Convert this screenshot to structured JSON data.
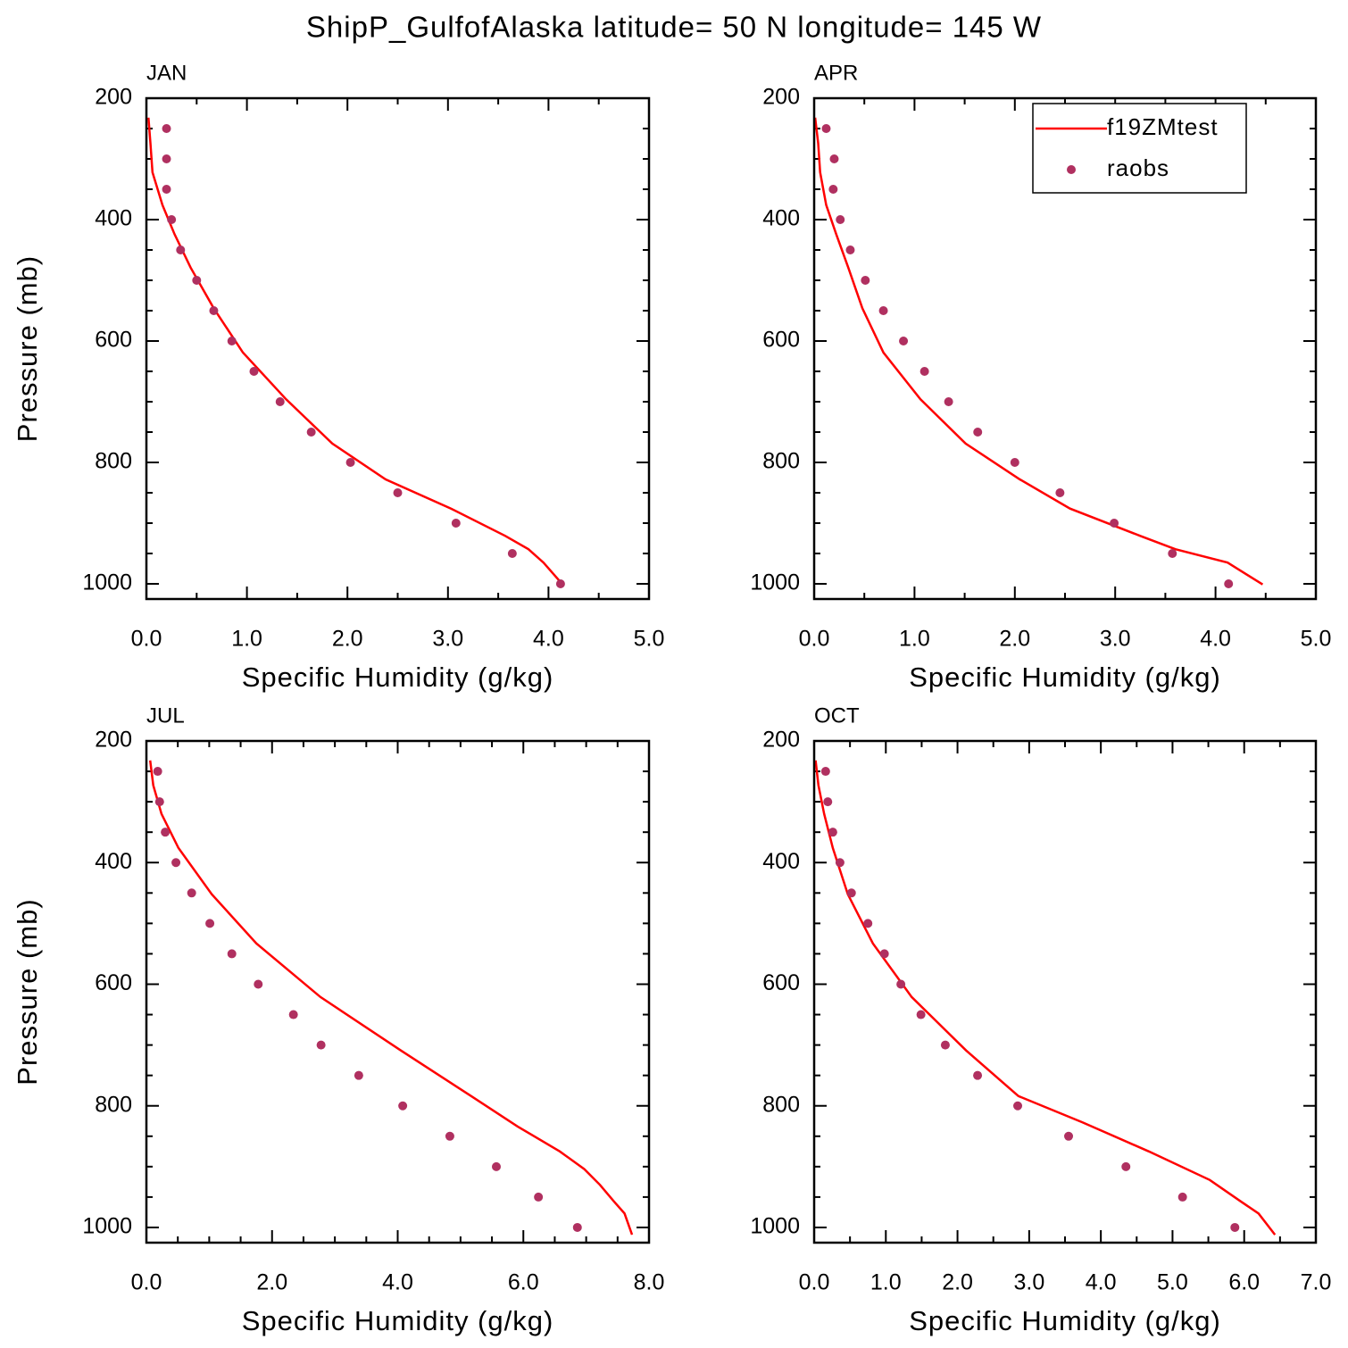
{
  "title": "ShipP_GulfofAlaska  latitude= 50 N longitude= 145 W",
  "chart_data": [
    {
      "type": "line",
      "title": "JAN",
      "x_label": "Specific Humidity (g/kg)",
      "y_label": "Pressure (mb)",
      "xlim": [
        0,
        5
      ],
      "xticks": [
        {
          "value": 0,
          "label": "0.0"
        },
        {
          "value": 1,
          "label": "1.0"
        },
        {
          "value": 2,
          "label": "2.0"
        },
        {
          "value": 3,
          "label": "3.0"
        },
        {
          "value": 4,
          "label": "4.0"
        },
        {
          "value": 5,
          "label": "5.0"
        }
      ],
      "ylim": [
        1025,
        200
      ],
      "yticks": [
        200,
        400,
        600,
        800,
        1000
      ],
      "series": [
        {
          "color": "#ff0000",
          "style": "line",
          "x": [
            0.02,
            0.04,
            0.06,
            0.16,
            0.28,
            0.44,
            0.67,
            0.96,
            1.39,
            1.85,
            2.38,
            3.03,
            3.57,
            3.8,
            3.95,
            4.14
          ],
          "values": [
            232,
            274,
            322,
            376,
            424,
            479,
            546,
            619,
            696,
            769,
            828,
            876,
            921,
            943,
            965,
            1001
          ]
        },
        {
          "color": "#b03060",
          "style": "markers",
          "x": [
            0.2,
            0.2,
            0.2,
            0.25,
            0.34,
            0.5,
            0.67,
            0.85,
            1.07,
            1.33,
            1.64,
            2.03,
            2.5,
            3.08,
            3.64,
            4.12
          ],
          "values": [
            250,
            300,
            350,
            400,
            450,
            500,
            550,
            600,
            650,
            700,
            750,
            800,
            850,
            900,
            950,
            1000
          ]
        }
      ]
    },
    {
      "type": "line",
      "title": "APR",
      "x_label": "Specific Humidity (g/kg)",
      "legend": "upper right",
      "xlim": [
        0,
        5
      ],
      "xticks": [
        {
          "value": 0,
          "label": "0.0"
        },
        {
          "value": 1,
          "label": "1.0"
        },
        {
          "value": 2,
          "label": "2.0"
        },
        {
          "value": 3,
          "label": "3.0"
        },
        {
          "value": 4,
          "label": "4.0"
        },
        {
          "value": 5,
          "label": "5.0"
        }
      ],
      "ylim": [
        1025,
        200
      ],
      "yticks": [
        200,
        400,
        600,
        800,
        1000
      ],
      "series": [
        {
          "name": "f19ZMtest",
          "color": "#ff0000",
          "style": "line",
          "x": [
            0.01,
            0.04,
            0.06,
            0.12,
            0.22,
            0.34,
            0.48,
            0.69,
            1.06,
            1.51,
            2.05,
            2.55,
            3.25,
            3.6,
            4.12,
            4.47
          ],
          "values": [
            232,
            274,
            322,
            376,
            424,
            479,
            546,
            619,
            696,
            769,
            828,
            876,
            921,
            943,
            965,
            1001
          ]
        },
        {
          "name": "raobs",
          "color": "#b03060",
          "style": "markers",
          "x": [
            0.12,
            0.2,
            0.19,
            0.26,
            0.36,
            0.51,
            0.69,
            0.89,
            1.1,
            1.34,
            1.63,
            2.0,
            2.45,
            2.99,
            3.57,
            4.13
          ],
          "values": [
            250,
            300,
            350,
            400,
            450,
            500,
            550,
            600,
            650,
            700,
            750,
            800,
            850,
            900,
            950,
            1000
          ]
        }
      ]
    },
    {
      "type": "line",
      "title": "JUL",
      "x_label": "Specific Humidity (g/kg)",
      "y_label": "Pressure (mb)",
      "xlim": [
        0,
        8
      ],
      "xticks": [
        {
          "value": 0,
          "label": "0.0"
        },
        {
          "value": 2,
          "label": "2.0"
        },
        {
          "value": 4,
          "label": "4.0"
        },
        {
          "value": 6,
          "label": "6.0"
        },
        {
          "value": 8,
          "label": "8.0"
        }
      ],
      "ylim": [
        1025,
        200
      ],
      "yticks": [
        200,
        400,
        600,
        800,
        1000
      ],
      "series": [
        {
          "color": "#ff0000",
          "style": "line",
          "x": [
            0.06,
            0.11,
            0.24,
            0.51,
            1.04,
            1.75,
            2.77,
            4.05,
            5.17,
            5.91,
            6.58,
            6.97,
            7.22,
            7.44,
            7.61,
            7.73
          ],
          "values": [
            232,
            273,
            320,
            376,
            452,
            533,
            621,
            709,
            784,
            834,
            875,
            904,
            930,
            957,
            977,
            1012
          ]
        },
        {
          "color": "#b03060",
          "style": "markers",
          "x": [
            0.18,
            0.21,
            0.3,
            0.47,
            0.72,
            1.01,
            1.36,
            1.78,
            2.34,
            2.78,
            3.38,
            4.08,
            4.83,
            5.57,
            6.24,
            6.86
          ],
          "values": [
            250,
            300,
            350,
            400,
            450,
            500,
            550,
            600,
            650,
            700,
            750,
            800,
            850,
            900,
            950,
            1000
          ]
        }
      ]
    },
    {
      "type": "line",
      "title": "OCT",
      "x_label": "Specific Humidity (g/kg)",
      "xlim": [
        0,
        7
      ],
      "xticks": [
        {
          "value": 0,
          "label": "0.0"
        },
        {
          "value": 1,
          "label": "1.0"
        },
        {
          "value": 2,
          "label": "2.0"
        },
        {
          "value": 3,
          "label": "3.0"
        },
        {
          "value": 4,
          "label": "4.0"
        },
        {
          "value": 5,
          "label": "5.0"
        },
        {
          "value": 6,
          "label": "6.0"
        },
        {
          "value": 7,
          "label": "7.0"
        }
      ],
      "ylim": [
        1025,
        200
      ],
      "yticks": [
        200,
        400,
        600,
        800,
        1000
      ],
      "series": [
        {
          "color": "#ff0000",
          "style": "line",
          "x": [
            0.02,
            0.06,
            0.14,
            0.26,
            0.47,
            0.82,
            1.36,
            2.12,
            2.85,
            3.74,
            4.67,
            5.52,
            5.95,
            6.2,
            6.43
          ],
          "values": [
            232,
            273,
            320,
            376,
            452,
            533,
            621,
            709,
            784,
            827,
            875,
            922,
            957,
            977,
            1012
          ]
        },
        {
          "color": "#b03060",
          "style": "markers",
          "x": [
            0.16,
            0.19,
            0.26,
            0.36,
            0.52,
            0.75,
            0.98,
            1.21,
            1.49,
            1.83,
            2.28,
            2.84,
            3.55,
            4.35,
            5.14,
            5.87
          ],
          "values": [
            250,
            300,
            350,
            400,
            450,
            500,
            550,
            600,
            650,
            700,
            750,
            800,
            850,
            900,
            950,
            1000
          ]
        }
      ]
    }
  ]
}
